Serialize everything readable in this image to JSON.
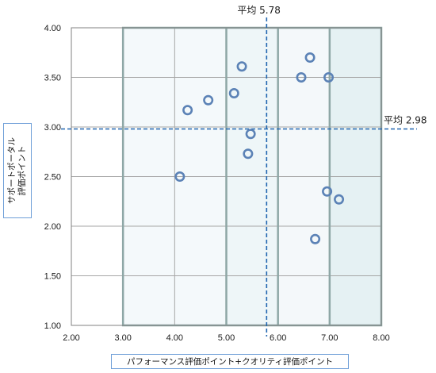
{
  "chart_data": {
    "type": "scatter",
    "title": "",
    "xlabel": "パフォーマンス評価ポイント+クオリティ評価ポイント",
    "ylabel_lines": [
      "サポートポータル",
      "評価ポイント"
    ],
    "xlim": [
      2.0,
      8.0
    ],
    "ylim": [
      1.0,
      4.0
    ],
    "x_ticks": [
      "2.00",
      "3.00",
      "4.00",
      "5.00",
      "6.00",
      "7.00",
      "8.00"
    ],
    "y_ticks": [
      "1.00",
      "1.50",
      "2.00",
      "2.50",
      "3.00",
      "3.50",
      "4.00"
    ],
    "grid": true,
    "points": [
      {
        "x": 4.1,
        "y": 2.5
      },
      {
        "x": 4.25,
        "y": 3.17
      },
      {
        "x": 4.65,
        "y": 3.27
      },
      {
        "x": 5.15,
        "y": 3.34
      },
      {
        "x": 5.3,
        "y": 3.61
      },
      {
        "x": 5.42,
        "y": 2.73
      },
      {
        "x": 5.47,
        "y": 2.93
      },
      {
        "x": 6.45,
        "y": 3.5
      },
      {
        "x": 6.62,
        "y": 3.7
      },
      {
        "x": 6.98,
        "y": 3.5
      },
      {
        "x": 6.95,
        "y": 2.35
      },
      {
        "x": 7.18,
        "y": 2.27
      },
      {
        "x": 6.72,
        "y": 1.87
      }
    ],
    "average_x": {
      "value": 5.78,
      "label": "平均 5.78"
    },
    "average_y": {
      "value": 2.98,
      "label": "平均 2.98"
    },
    "bands": [
      {
        "from": 3.0,
        "to": 5.0,
        "color": "#f4f9fb"
      },
      {
        "from": 5.0,
        "to": 6.0,
        "color": "#eef6f8"
      },
      {
        "from": 6.0,
        "to": 7.0,
        "color": "#f4f8fa"
      },
      {
        "from": 7.0,
        "to": 8.0,
        "color": "#e5f1f3"
      }
    ],
    "colors": {
      "marker": "#5b82b6",
      "average_line": "#2166b0",
      "band_border": "#8ea7a6",
      "grid": "#a6a6a6"
    }
  }
}
